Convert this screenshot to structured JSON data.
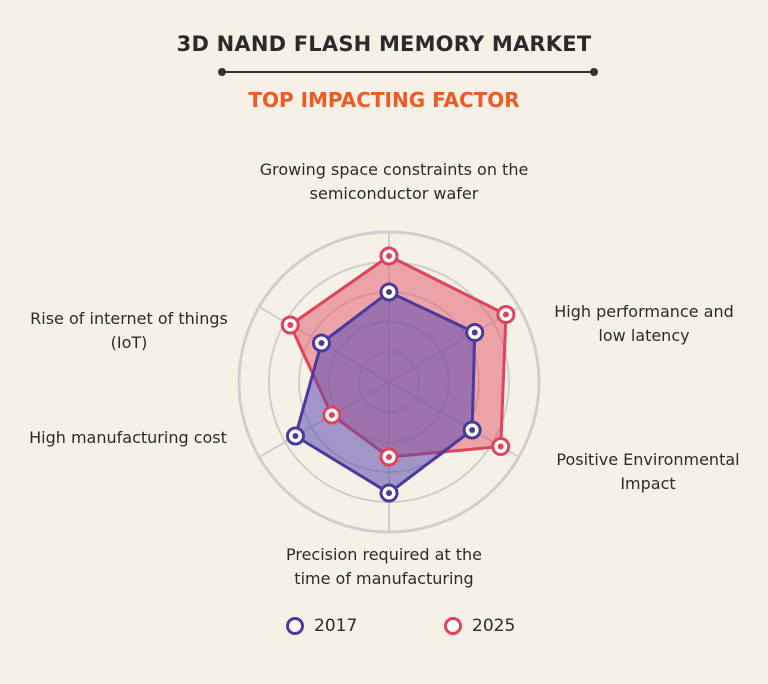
{
  "chart_data": {
    "type": "radar",
    "title": "3D NAND FLASH MEMORY MARKET",
    "subtitle": "TOP IMPACTING FACTOR",
    "categories": [
      "Growing space constraints on the semiconductor wafer",
      "High performance and low latency",
      "Positive Environmental Impact",
      "Precision required at the time of manufacturing",
      "High manufacturing cost",
      "Rise of internet of things (IoT)"
    ],
    "category_lines": [
      [
        "Growing space constraints on the",
        "semiconductor wafer"
      ],
      [
        "High performance and",
        "low latency"
      ],
      [
        "Positive Environmental",
        "Impact"
      ],
      [
        "Precision required at the",
        "time of manufacturing"
      ],
      [
        "High manufacturing cost"
      ],
      [
        "Rise of internet of things",
        "(IoT)"
      ]
    ],
    "rlim": [
      0,
      5
    ],
    "series": [
      {
        "name": "2017",
        "values": [
          3.0,
          3.3,
          3.2,
          3.7,
          3.6,
          2.6
        ]
      },
      {
        "name": "2025",
        "values": [
          4.2,
          4.5,
          4.3,
          2.5,
          2.2,
          3.8
        ]
      }
    ],
    "legend": "bottom-center"
  },
  "colors": {
    "s2017_line": "#4b3a9c",
    "s2017_fill": "#5c4bb0",
    "s2025_line": "#e0435a",
    "s2025_fill": "#e0566a",
    "grid": "#cfcfcf"
  }
}
